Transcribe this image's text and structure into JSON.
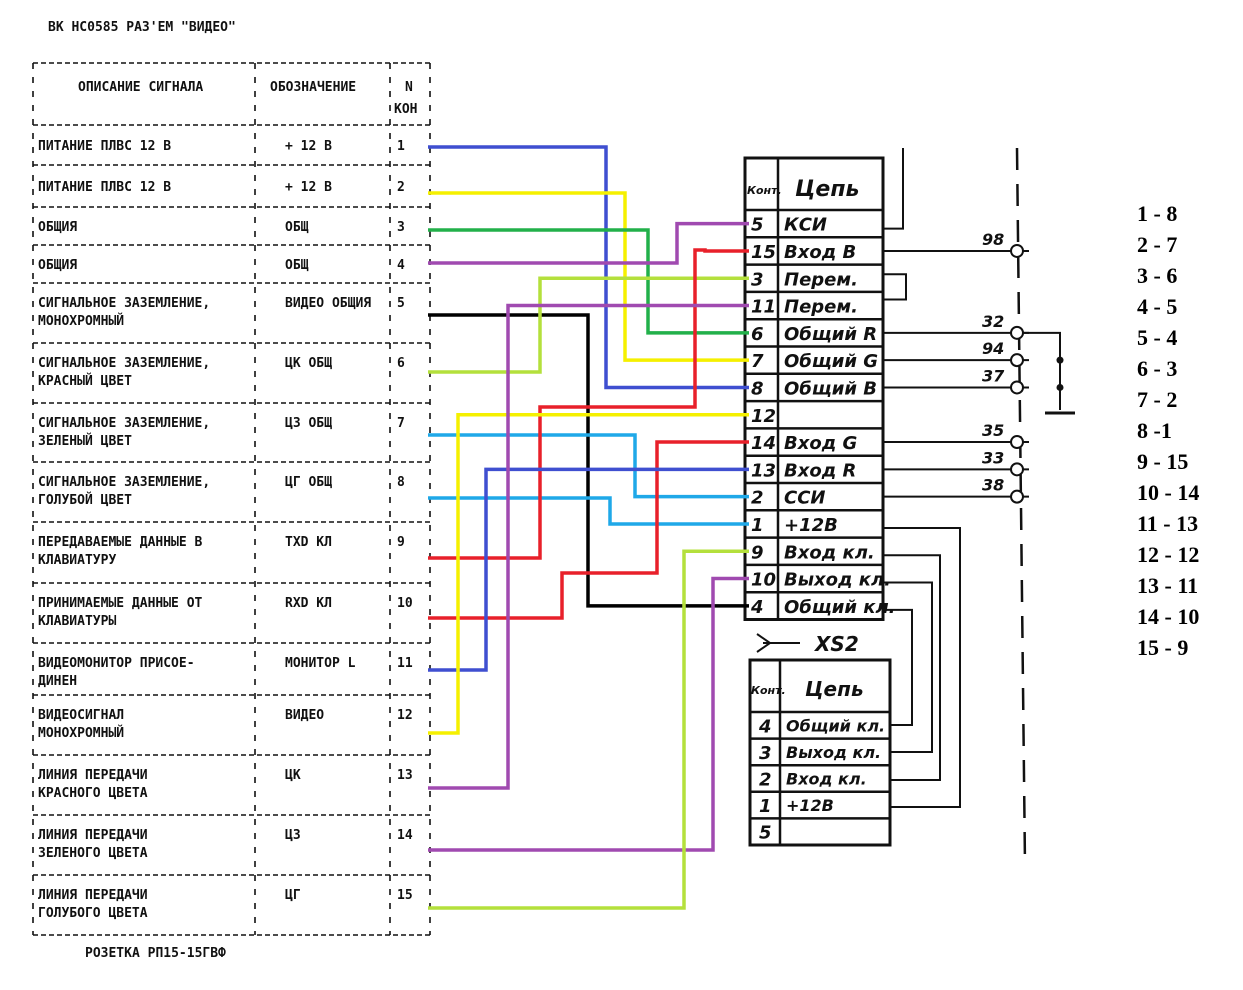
{
  "title": "ВК НС0585 РАЗ'ЕМ \"ВИДЕО\"",
  "left_table": {
    "headers": {
      "description": "ОПИСАНИЕ СИГНАЛА",
      "designation": "ОБОЗНАЧЕНИЕ",
      "pin_line1": "N",
      "pin_line2": "КОН"
    },
    "rows": [
      {
        "desc1": "ПИТАНИЕ ПЛВС 12 В",
        "desc2": "",
        "designation": "+ 12 В",
        "pin": "1"
      },
      {
        "desc1": "ПИТАНИЕ ПЛВС 12 В",
        "desc2": "",
        "designation": "+ 12 В",
        "pin": "2"
      },
      {
        "desc1": "ОБЩИЯ",
        "desc2": "",
        "designation": "ОБЩ",
        "pin": "3"
      },
      {
        "desc1": "ОБЩИЯ",
        "desc2": "",
        "designation": "ОБЩ",
        "pin": "4"
      },
      {
        "desc1": "СИГНАЛЬНОЕ ЗАЗЕМЛЕНИЕ,",
        "desc2": "  МОНОХРОМНЫЙ",
        "designation": "ВИДЕО ОБЩИЯ",
        "pin": "5"
      },
      {
        "desc1": "СИГНАЛЬНОЕ ЗАЗЕМЛЕНИЕ,",
        "desc2": "КРАСНЫЙ ЦВЕТ",
        "designation": "ЦК ОБЩ",
        "pin": "6"
      },
      {
        "desc1": "СИГНАЛЬНОЕ ЗАЗЕМЛЕНИЕ,",
        "desc2": "ЗЕЛЕНЫЙ ЦВЕТ",
        "designation": "ЦЗ ОБЩ",
        "pin": "7"
      },
      {
        "desc1": "СИГНАЛЬНОЕ ЗАЗЕМЛЕНИЕ,",
        "desc2": "ГОЛУБОЙ ЦВЕТ",
        "designation": "ЦГ ОБЩ",
        "pin": "8"
      },
      {
        "desc1": "ПЕРЕДАВАЕМЫЕ ДАННЫЕ В",
        "desc2": "  КЛАВИАТУРУ",
        "designation": "TXD КЛ",
        "pin": "9"
      },
      {
        "desc1": "ПРИНИМАЕМЫЕ ДАННЫЕ ОТ",
        "desc2": "  КЛАВИАТУРЫ",
        "designation": "RXD КЛ",
        "pin": "10"
      },
      {
        "desc1": " ВИДЕОМОНИТОР ПРИСОЕ-",
        "desc2": "      ДИНЕН",
        "designation": "МОНИТОР L",
        "pin": "11"
      },
      {
        "desc1": "    ВИДЕОСИГНАЛ",
        "desc2": "    МОНОХРОМНЫЙ",
        "designation": "ВИДЕО",
        "pin": "12"
      },
      {
        "desc1": "ЛИНИЯ ПЕРЕДАЧИ",
        "desc2": "КРАСНОГО ЦВЕТА",
        "designation": "ЦК",
        "pin": "13"
      },
      {
        "desc1": "ЛИНИЯ ПЕРЕДАЧИ",
        "desc2": "ЗЕЛЕНОГО ЦВЕТА",
        "designation": "ЦЗ",
        "pin": "14"
      },
      {
        "desc1": "ЛИНИЯ ПЕРЕДАЧИ",
        "desc2": "ГОЛУБОГО ЦВЕТА",
        "designation": "ЦГ",
        "pin": "15"
      }
    ],
    "footer": "РОЗЕТКА РП15-15ГВФ"
  },
  "right_table": {
    "headers": {
      "contact": "Конт.",
      "circuit": "Цепь"
    },
    "rows": [
      {
        "pin": "5",
        "circuit": "КСИ"
      },
      {
        "pin": "15",
        "circuit": "Вход  B"
      },
      {
        "pin": "3",
        "circuit": "Перем."
      },
      {
        "pin": "11",
        "circuit": "Перем."
      },
      {
        "pin": "6",
        "circuit": "Общий R"
      },
      {
        "pin": "7",
        "circuit": "Общий G"
      },
      {
        "pin": "8",
        "circuit": "Общий B"
      },
      {
        "pin": "12",
        "circuit": ""
      },
      {
        "pin": "14",
        "circuit": "Вход  G"
      },
      {
        "pin": "13",
        "circuit": "Вход  R"
      },
      {
        "pin": "2",
        "circuit": "ССИ"
      },
      {
        "pin": "1",
        "circuit": "+12В"
      },
      {
        "pin": "9",
        "circuit": "Вход кл."
      },
      {
        "pin": "10",
        "circuit": "Выход кл."
      },
      {
        "pin": "4",
        "circuit": "Общий кл."
      }
    ]
  },
  "xs2": {
    "label": "XS2",
    "headers": {
      "contact": "Конт.",
      "circuit": "Цепь"
    },
    "rows": [
      {
        "pin": "4",
        "circuit": "Общий кл."
      },
      {
        "pin": "3",
        "circuit": "Выход кл."
      },
      {
        "pin": "2",
        "circuit": "Вход кл."
      },
      {
        "pin": "1",
        "circuit": "+12В"
      },
      {
        "pin": "5",
        "circuit": ""
      }
    ]
  },
  "terminals": [
    "98",
    "32",
    "94",
    "37",
    "35",
    "33",
    "38"
  ],
  "wires": [
    {
      "from": "1",
      "to": "8",
      "color": "#3f4fd0"
    },
    {
      "from": "2",
      "to": "7",
      "color": "#f5f000"
    },
    {
      "from": "3",
      "to": "6",
      "color": "#22b04a"
    },
    {
      "from": "4",
      "to": "5",
      "color": "#a04ab0"
    },
    {
      "from": "5",
      "to": "4",
      "color": "#000000"
    },
    {
      "from": "6",
      "to": "3",
      "color": "#b4e03c"
    },
    {
      "from": "7",
      "to": "2",
      "color": "#1fa8e8"
    },
    {
      "from": "8",
      "to": "1",
      "color": "#1fa8e8"
    },
    {
      "from": "9",
      "to": "15",
      "color": "#e8202a"
    },
    {
      "from": "10",
      "to": "14",
      "color": "#e8202a"
    },
    {
      "from": "11",
      "to": "13",
      "color": "#3f4fd0"
    },
    {
      "from": "12",
      "to": "12",
      "color": "#f5f000"
    },
    {
      "from": "13",
      "to": "11",
      "color": "#a04ab0"
    },
    {
      "from": "14",
      "to": "10",
      "color": "#a04ab0"
    },
    {
      "from": "15",
      "to": "9",
      "color": "#b4e03c"
    }
  ],
  "mapping": [
    "1 - 8",
    "2 - 7",
    "3 - 6",
    "4 - 5",
    "5 - 4",
    "6 - 3",
    "7 - 2",
    "8 -1",
    "9 - 15",
    "10 - 14",
    "11 - 13",
    "12 - 12",
    "13 - 11",
    "14 - 10",
    "15 - 9"
  ]
}
